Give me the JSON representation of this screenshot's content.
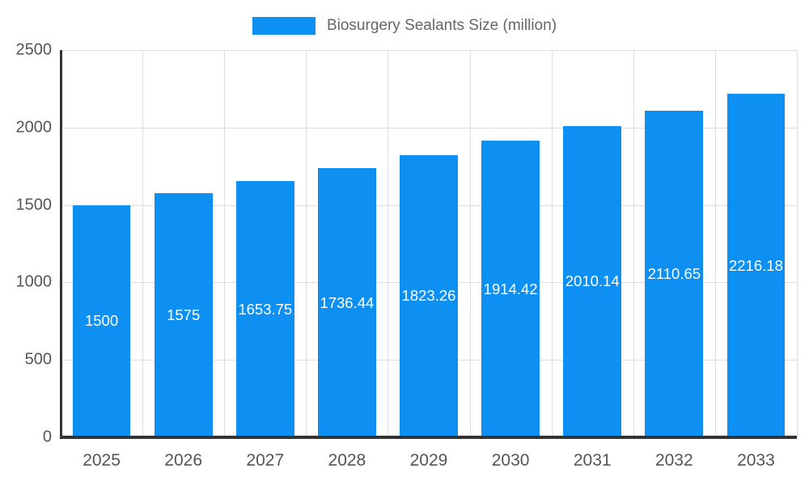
{
  "chart_data": {
    "type": "bar",
    "title": "Biosurgery Sealants Size (million)",
    "categories": [
      "2025",
      "2026",
      "2027",
      "2028",
      "2029",
      "2030",
      "2031",
      "2032",
      "2033"
    ],
    "values": [
      1500,
      1575,
      1653.75,
      1736.44,
      1823.26,
      1914.42,
      2010.14,
      2110.65,
      2216.18
    ],
    "value_labels": [
      "1500",
      "1575",
      "1653.75",
      "1736.44",
      "1823.26",
      "1914.42",
      "2010.14",
      "2110.65",
      "2216.18"
    ],
    "xlabel": "",
    "ylabel": "",
    "ylim": [
      0,
      2500
    ],
    "yticks": [
      0,
      500,
      1000,
      1500,
      2000,
      2500
    ],
    "grid": "on",
    "legend_position": "top-center",
    "colors": {
      "bar": "#0e90f2",
      "grid": "#dddddd",
      "axis": "#333333",
      "tick_label": "#555555",
      "legend_text": "#666666",
      "value_label": "#ffffff",
      "background": "#ffffff"
    }
  }
}
